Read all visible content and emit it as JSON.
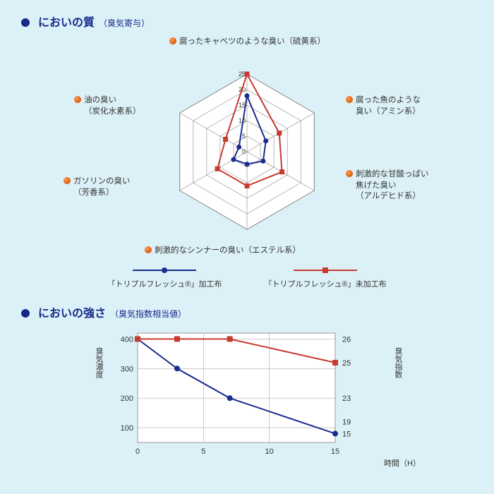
{
  "section1": {
    "title": "においの質",
    "subtitle": "（臭気寄与）"
  },
  "section2": {
    "title": "においの強さ",
    "subtitle": "（臭気指数相当値）"
  },
  "radar": {
    "max": 25,
    "rings": [
      0,
      5,
      10,
      15,
      20,
      25
    ],
    "axes": [
      {
        "line1": "腐ったキャベツのような臭い（硫黄系）",
        "line2": ""
      },
      {
        "line1": "腐った魚のような",
        "line2": "臭い（アミン系）"
      },
      {
        "line1": "刺激的な甘酸っぱい",
        "line2": "焦げた臭い",
        "line3": "（アルデヒド系）"
      },
      {
        "line1": "刺激的なシンナーの臭い（エステル系）",
        "line2": ""
      },
      {
        "line1": "ガソリンの臭い",
        "line2": "（芳香系）"
      },
      {
        "line1": "油の臭い",
        "line2": "（炭化水素系）"
      }
    ],
    "series": [
      {
        "name": "treated",
        "color": "#1a2c8e",
        "marker": "circle",
        "values": [
          18,
          7,
          6,
          4,
          5,
          3
        ]
      },
      {
        "name": "untreated",
        "color": "#c73a2f",
        "marker": "square",
        "values": [
          25,
          12,
          13,
          11,
          11,
          8
        ]
      }
    ],
    "grid_color": "#888888",
    "background": "#ffffff"
  },
  "legend": {
    "treated": "「トリプルフレッシュ®」加工布",
    "untreated": "「トリプルフレッシュ®」未加工布"
  },
  "linechart": {
    "background": "#ffffff",
    "grid_color": "#999999",
    "x": {
      "min": 0,
      "max": 15,
      "ticks": [
        0,
        5,
        10,
        15
      ],
      "label": "時間（H）"
    },
    "y_left": {
      "label": "臭気濃度",
      "ticks": [
        100,
        200,
        300,
        400
      ],
      "min": 50,
      "max": 420
    },
    "y_right": {
      "label": "臭気指数",
      "values": [
        26,
        25,
        23,
        19,
        15
      ]
    },
    "series": [
      {
        "name": "treated",
        "color": "#1a2c8e",
        "marker": "circle",
        "points": [
          [
            0,
            400
          ],
          [
            3,
            300
          ],
          [
            7,
            200
          ],
          [
            15,
            80
          ]
        ],
        "right_labels": {
          "15": 15
        }
      },
      {
        "name": "untreated",
        "color": "#c73a2f",
        "marker": "square",
        "points": [
          [
            0,
            400
          ],
          [
            3,
            400
          ],
          [
            7,
            400
          ],
          [
            15,
            320
          ]
        ],
        "right_labels": {
          "15": 25
        }
      }
    ],
    "right_axis_labels": [
      {
        "y": 400,
        "text": "26"
      },
      {
        "y": 320,
        "text": "25"
      },
      {
        "y": 200,
        "text": "23"
      },
      {
        "y": 120,
        "text": "19"
      },
      {
        "y": 80,
        "text": "15"
      }
    ]
  }
}
